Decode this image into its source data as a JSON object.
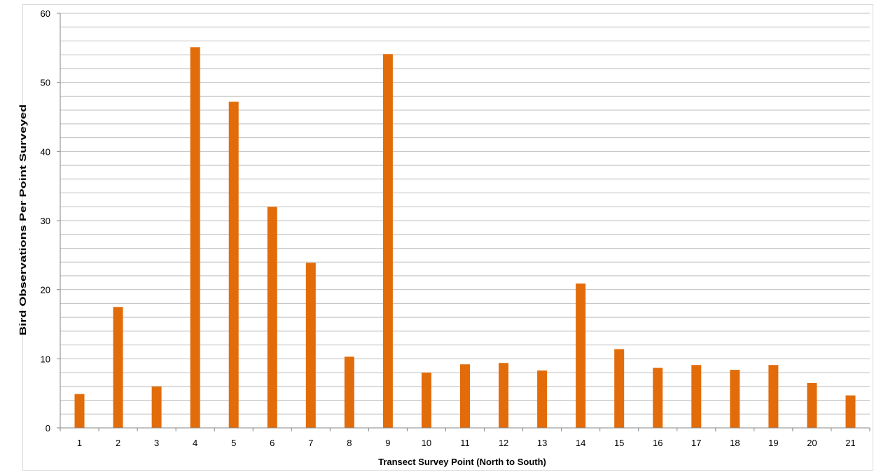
{
  "chart_data": {
    "type": "bar",
    "title": "",
    "xlabel": "Transect Survey Point (North to South)",
    "ylabel": "Bird Observations Per Point Surveyed",
    "categories": [
      "1",
      "2",
      "3",
      "4",
      "5",
      "6",
      "7",
      "8",
      "9",
      "10",
      "11",
      "12",
      "13",
      "14",
      "15",
      "16",
      "17",
      "18",
      "19",
      "20",
      "21"
    ],
    "series": [
      {
        "values": [
          4.9,
          17.5,
          6.0,
          55.1,
          47.2,
          32.0,
          23.9,
          10.3,
          54.1,
          8.0,
          9.2,
          9.4,
          8.3,
          20.9,
          11.4,
          8.7,
          9.1,
          8.4,
          9.1,
          6.5,
          4.7
        ],
        "color": "#e36c0a"
      }
    ],
    "ylim": [
      0,
      60
    ],
    "yticks": [
      0,
      10,
      20,
      30,
      40,
      50,
      60
    ],
    "minor_grid_step": 2,
    "grid": true,
    "legend": "none"
  }
}
